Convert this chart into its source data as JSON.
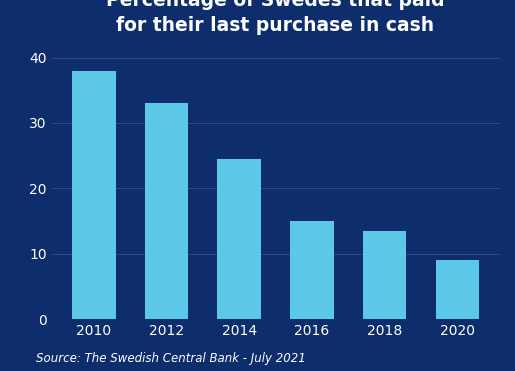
{
  "title": "Percentage of Swedes that paid\nfor their last purchase in cash",
  "categories": [
    "2010",
    "2012",
    "2014",
    "2016",
    "2018",
    "2020"
  ],
  "values": [
    38,
    33,
    24.5,
    15,
    13.5,
    9
  ],
  "bar_color": "#5BC8E8",
  "background_color": "#0D2D6C",
  "text_color": "#FFFFFF",
  "grid_color": "#2A4A8A",
  "source_text": "Source: The Swedish Central Bank - July 2021",
  "ylim": [
    0,
    42
  ],
  "yticks": [
    0,
    10,
    20,
    30,
    40
  ],
  "title_fontsize": 13.5,
  "tick_fontsize": 10,
  "source_fontsize": 8.5,
  "bar_width": 0.6
}
